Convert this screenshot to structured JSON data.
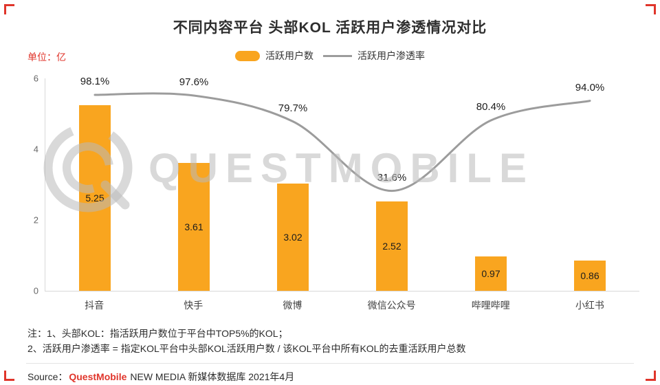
{
  "page": {
    "title": "不同内容平台 头部KOL 活跃用户渗透情况对比",
    "unit_label": "单位：亿",
    "notes": [
      "注：1、头部KOL：指活跃用户数位于平台中TOP5%的KOL；",
      "2、活跃用户渗透率 = 指定KOL平台中头部KOL活跃用户数 / 该KOL平台中所有KOL的去重活跃用户总数"
    ],
    "source": {
      "prefix": "Source：",
      "brand": "QuestMobile",
      "suffix": "NEW MEDIA 新媒体数据库 2021年4月"
    },
    "watermark": "QUESTMOBILE"
  },
  "legend": [
    {
      "label": "活跃用户数",
      "type": "bar"
    },
    {
      "label": "活跃用户渗透率",
      "type": "line"
    }
  ],
  "colors": {
    "bar": "#F9A51F",
    "line": "#9C9C9C",
    "accent_red": "#E0352B",
    "text_dark": "#2C2C2C"
  },
  "chart_data": {
    "type": "bar",
    "categories": [
      "抖音",
      "快手",
      "微博",
      "微信公众号",
      "哔哩哔哩",
      "小红书"
    ],
    "series": [
      {
        "name": "活跃用户数",
        "type": "bar",
        "unit": "亿",
        "values": [
          5.25,
          3.61,
          3.02,
          2.52,
          0.97,
          0.86
        ]
      },
      {
        "name": "活跃用户渗透率",
        "type": "line",
        "unit": "%",
        "values": [
          98.1,
          97.6,
          79.7,
          31.6,
          80.4,
          94.0
        ]
      }
    ],
    "line_value_labels": [
      "98.1%",
      "97.6%",
      "79.7%",
      "31.6%",
      "80.4%",
      "94.0%"
    ],
    "yticks": [
      0,
      2,
      4,
      6
    ],
    "ylim": [
      0,
      6
    ],
    "grid": false,
    "legend_position": "top-center"
  }
}
